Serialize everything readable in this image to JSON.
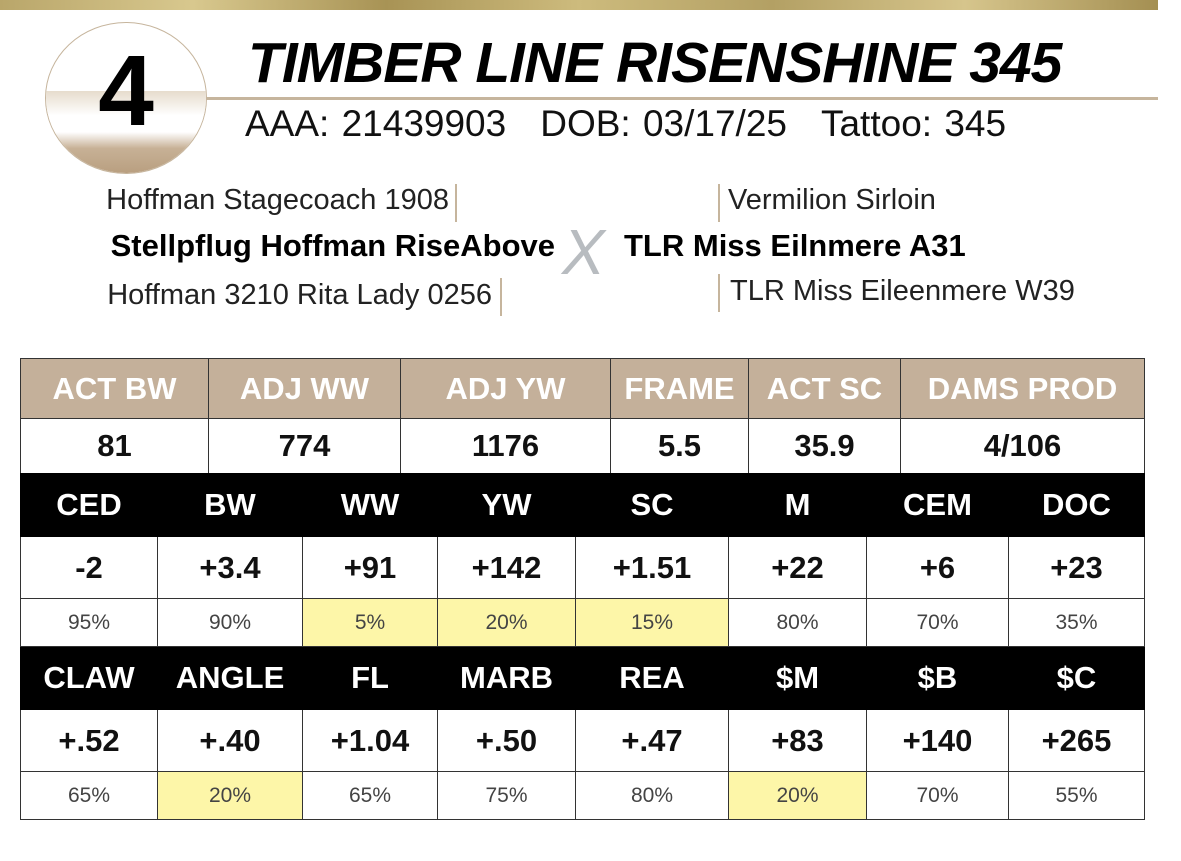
{
  "lot_number": "4",
  "title": "TIMBER LINE RISENSHINE 345",
  "registration": "AAA: 21439903",
  "dob": "DOB: 03/17/25",
  "tattoo": "Tattoo: 345",
  "pedigree": {
    "sire_sire": "Hoffman Stagecoach 1908",
    "sire": "Stellpflug Hoffman RiseAbove",
    "sire_dam": "Hoffman 3210 Rita Lady 0256",
    "dam_sire": "Vermilion Sirloin",
    "dam": "TLR Miss Eilnmere A31",
    "dam_dam": "TLR Miss Eileenmere W39"
  },
  "performance": {
    "headers": [
      "ACT BW",
      "ADJ WW",
      "ADJ YW",
      "FRAME",
      "ACT SC",
      "DAMS PROD"
    ],
    "values": [
      "81",
      "774",
      "1176",
      "5.5",
      "35.9",
      "4/106"
    ]
  },
  "epd1": {
    "headers": [
      "CED",
      "BW",
      "WW",
      "YW",
      "SC",
      "M",
      "CEM",
      "DOC"
    ],
    "values": [
      "-2",
      "+3.4",
      "+91",
      "+142",
      "+1.51",
      "+22",
      "+6",
      "+23"
    ],
    "percentiles": [
      "95%",
      "90%",
      "5%",
      "20%",
      "15%",
      "80%",
      "70%",
      "35%"
    ],
    "highlight": [
      false,
      false,
      true,
      true,
      true,
      false,
      false,
      false
    ]
  },
  "epd2": {
    "headers": [
      "CLAW",
      "ANGLE",
      "FL",
      "MARB",
      "REA",
      "$M",
      "$B",
      "$C"
    ],
    "values": [
      "+.52",
      "+.40",
      "+1.04",
      "+.50",
      "+.47",
      "+83",
      "+140",
      "+265"
    ],
    "percentiles": [
      "65%",
      "20%",
      "65%",
      "75%",
      "80%",
      "20%",
      "70%",
      "55%"
    ],
    "highlight": [
      false,
      true,
      false,
      false,
      false,
      true,
      false,
      false
    ]
  },
  "colors": {
    "tan": "#c4b09a",
    "highlight": "#fdf6a8"
  }
}
